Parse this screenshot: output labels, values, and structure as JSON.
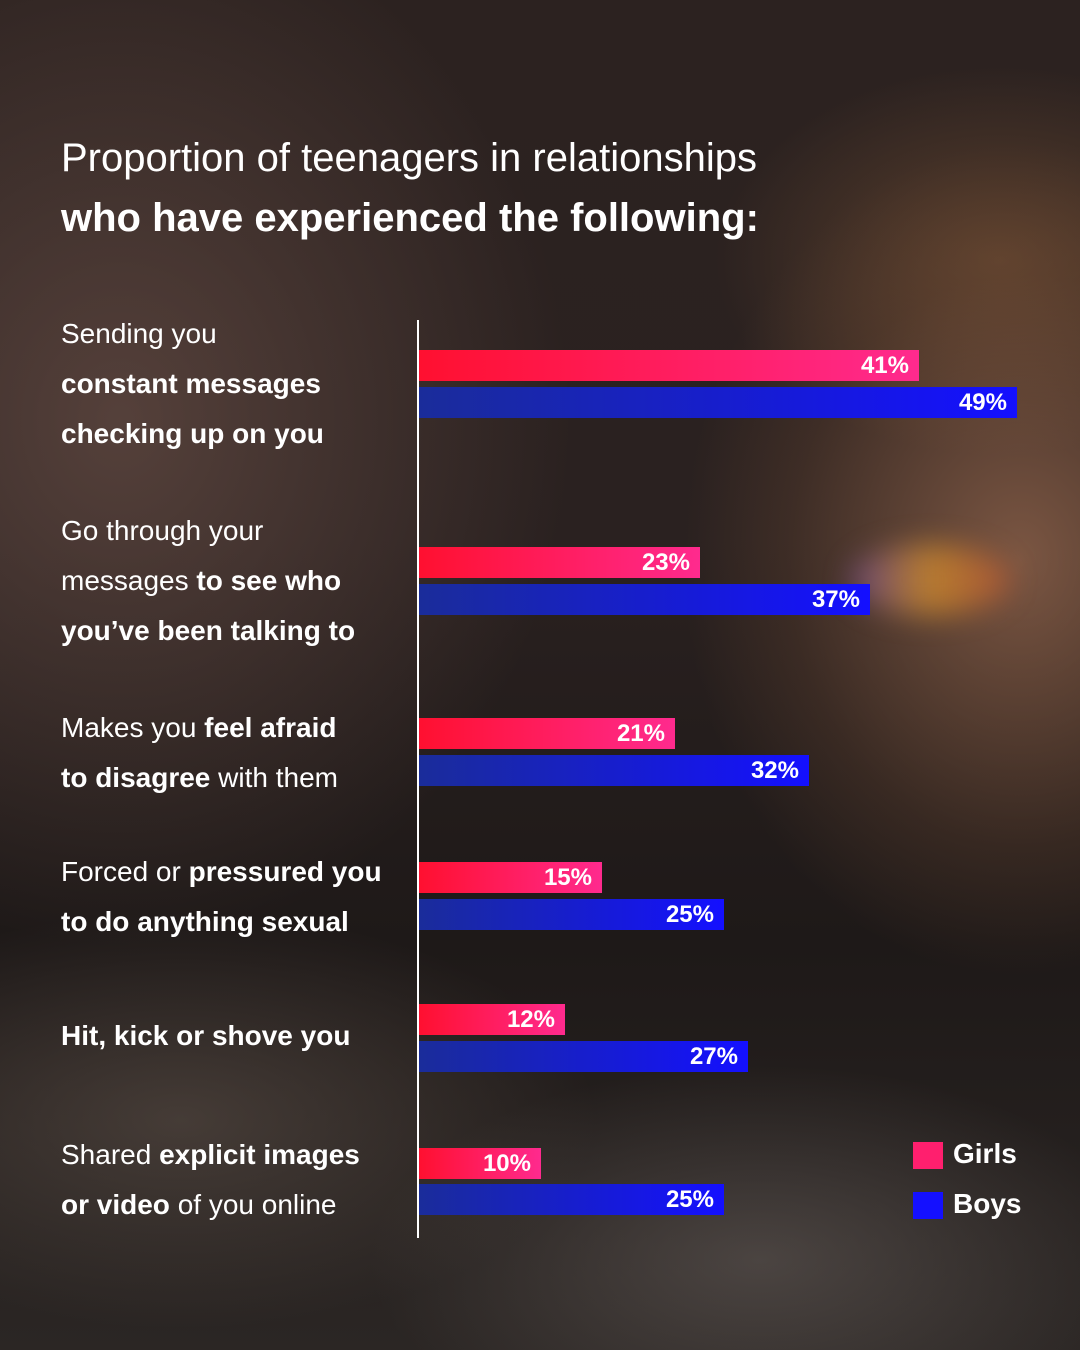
{
  "title": {
    "line1": "Proportion of teenagers in relationships",
    "line2": "who have experienced the following:"
  },
  "colors": {
    "girls": "#ff1f6e",
    "boys": "#1410ff",
    "axis": "#ffffff"
  },
  "chart_data": {
    "type": "bar",
    "orientation": "horizontal",
    "title": "Proportion of teenagers in relationships who have experienced the following:",
    "categories": [
      "Sending you constant messages checking up on you",
      "Go through your messages to see who you’ve been talking to",
      "Makes you feel afraid to disagree with them",
      "Forced or pressured you to do anything sexual",
      "Hit, kick or shove you",
      "Shared explicit images or video of you online"
    ],
    "series": [
      {
        "name": "Girls",
        "values": [
          41,
          23,
          21,
          15,
          12,
          10
        ],
        "labels": [
          "41%",
          "23%",
          "21%",
          "15%",
          "12%",
          "10%"
        ]
      },
      {
        "name": "Boys",
        "values": [
          49,
          37,
          32,
          25,
          27,
          25
        ],
        "labels": [
          "49%",
          "37%",
          "32%",
          "25%",
          "27%",
          "25%"
        ]
      }
    ],
    "xlim": [
      0,
      100
    ],
    "unit": "%",
    "grid": false,
    "legend": "bottom-right"
  },
  "category_labels": [
    {
      "lines": [
        [
          {
            "t": "Sending you",
            "b": false
          }
        ],
        [
          {
            "t": "constant messages",
            "b": true
          }
        ],
        [
          {
            "t": "checking up on you",
            "b": true
          }
        ]
      ]
    },
    {
      "lines": [
        [
          {
            "t": "Go through your",
            "b": false
          }
        ],
        [
          {
            "t": "messages ",
            "b": false
          },
          {
            "t": "to see who",
            "b": true
          }
        ],
        [
          {
            "t": "you’ve been talking to",
            "b": true
          }
        ]
      ]
    },
    {
      "lines": [
        [
          {
            "t": "Makes you ",
            "b": false
          },
          {
            "t": "feel afraid",
            "b": true
          }
        ],
        [
          {
            "t": "to disagree",
            "b": true
          },
          {
            "t": " with them",
            "b": false
          }
        ]
      ]
    },
    {
      "lines": [
        [
          {
            "t": "Forced or ",
            "b": false
          },
          {
            "t": "pressured you",
            "b": true
          }
        ],
        [
          {
            "t": "to do anything sexual",
            "b": true
          }
        ]
      ]
    },
    {
      "lines": [
        [
          {
            "t": "Hit, kick or shove you",
            "b": true
          }
        ]
      ]
    },
    {
      "lines": [
        [
          {
            "t": "Shared ",
            "b": false
          },
          {
            "t": "explicit images",
            "b": true
          }
        ],
        [
          {
            "t": "or video",
            "b": true
          },
          {
            "t": " of you online",
            "b": false
          }
        ]
      ]
    }
  ],
  "legend": {
    "items": [
      {
        "label": "Girls",
        "color": "#ff1f6e"
      },
      {
        "label": "Boys",
        "color": "#1410ff"
      }
    ]
  }
}
